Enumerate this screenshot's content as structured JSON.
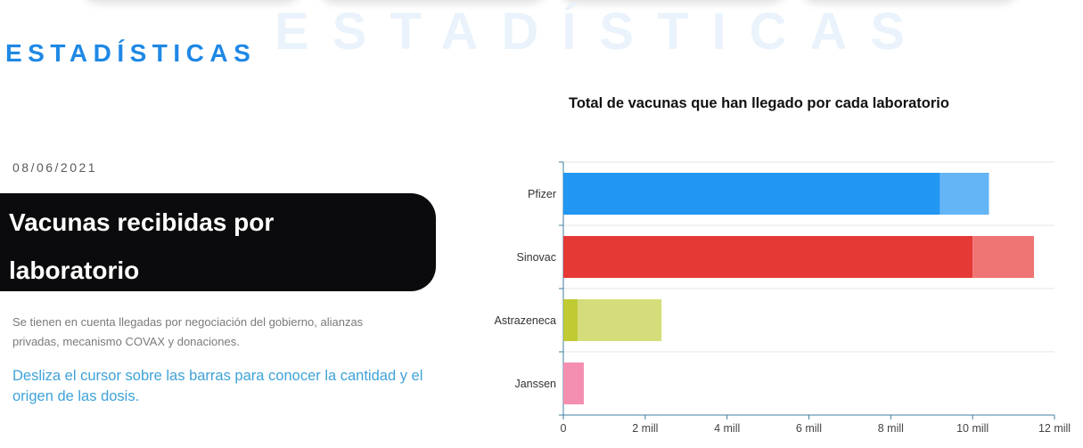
{
  "section": {
    "title": "ESTADÍSTICAS",
    "watermark": "ESTADÍSTICAS"
  },
  "card": {
    "date": "08/06/2021",
    "title_line1": "Vacunas recibidas por",
    "title_line2": "laboratorio",
    "note": "Se tienen en cuenta llegadas por negociación del gobierno, alianzas privadas, mecanismo COVAX y donaciones.",
    "hint": "Desliza el cursor sobre las barras para conocer la cantidad y el origen de las dosis."
  },
  "chart_data": {
    "type": "bar",
    "orientation": "horizontal",
    "stacked": true,
    "title": "Total de vacunas que han llegado por cada laboratorio",
    "xlabel": "",
    "ylabel": "",
    "categories": [
      "Pfizer",
      "Sinovac",
      "Astrazeneca",
      "Janssen"
    ],
    "series": [
      {
        "values": [
          9.2,
          10.0,
          0.35,
          0.5
        ]
      },
      {
        "values": [
          1.2,
          1.5,
          2.05,
          0
        ]
      }
    ],
    "bar_colors": [
      [
        "#2196f3",
        "#64b5f6"
      ],
      [
        "#e53935",
        "#ef7575"
      ],
      [
        "#c0ca33",
        "#d4dd79"
      ],
      [
        "#f48fb1",
        "#f8b6cc"
      ]
    ],
    "xlim": [
      0,
      12
    ],
    "x_ticks": [
      0,
      2,
      4,
      6,
      8,
      10,
      12
    ],
    "x_tick_labels": [
      "0",
      "2 mill",
      "4 mill",
      "6 mill",
      "8 mill",
      "10 mill",
      "12 mill"
    ],
    "grid": true,
    "units": "millones de dosis"
  }
}
